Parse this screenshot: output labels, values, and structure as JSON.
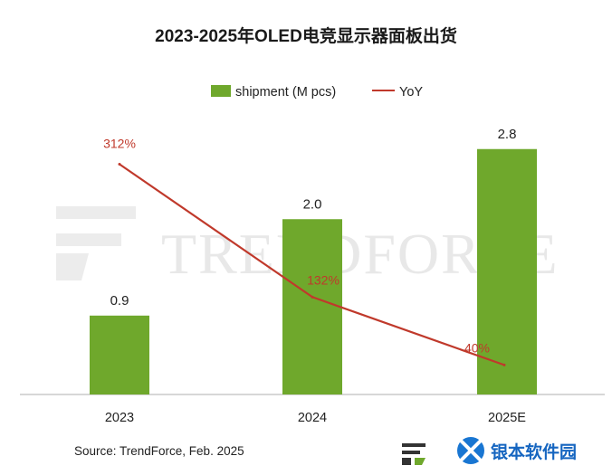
{
  "chart_data": {
    "type": "bar",
    "title": "2023-2025年OLED电竞显示器面板出货",
    "categories": [
      "2023",
      "2024",
      "2025E"
    ],
    "series": [
      {
        "name": "shipment (M pcs)",
        "kind": "bar",
        "values": [
          0.9,
          2.0,
          2.8
        ],
        "labels": [
          "0.9",
          "2.0",
          "2.8"
        ],
        "color": "#6fa82c"
      },
      {
        "name": "YoY",
        "kind": "line",
        "values": [
          312,
          132,
          40
        ],
        "labels": [
          "312%",
          "132%",
          "40%"
        ],
        "color": "#c0392b",
        "unit": "%"
      }
    ],
    "ylim": [
      0,
      3.2
    ],
    "yoy_range": [
      0,
      380
    ],
    "legend_position": "top",
    "grid": false
  },
  "source": "Source: TrendForce, Feb. 2025",
  "watermark": "TRENDFORCE",
  "corner_watermark": "银本软件园",
  "colors": {
    "bar": "#6fa82c",
    "line": "#c0392b",
    "axis": "#bfbfbf",
    "text": "#222222",
    "watermark": "#e6e6e6"
  }
}
